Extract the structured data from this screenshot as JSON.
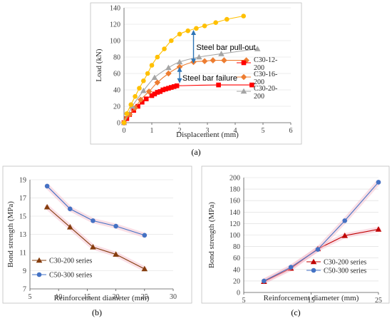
{
  "chart_data": [
    {
      "panel_label": "(a)",
      "type": "scatter",
      "xlabel": "Displacement (mm)",
      "ylabel": "Load (kN)",
      "xlim": [
        0,
        6
      ],
      "ylim": [
        0,
        140
      ],
      "xticks": [
        0,
        1,
        2,
        3,
        4,
        5,
        6
      ],
      "yticks": [
        0,
        20,
        40,
        60,
        80,
        100,
        120,
        140
      ],
      "grid": "horizontal",
      "legend_position": "right",
      "series": [
        {
          "name": "C30-12-200",
          "color": "#ff0000",
          "marker": "square",
          "x": [
            0,
            0.1,
            0.2,
            0.35,
            0.5,
            0.65,
            0.8,
            1.0,
            1.1,
            1.2,
            1.3,
            1.4,
            1.5,
            1.6,
            1.7,
            1.8,
            1.9,
            3.4,
            4.6
          ],
          "y": [
            0,
            5,
            10,
            15,
            20,
            25,
            29,
            33,
            35,
            37,
            38,
            40,
            41,
            42,
            43,
            44,
            45,
            46,
            46
          ]
        },
        {
          "name": "C30-16-200",
          "color": "#ed7d31",
          "marker": "diamond",
          "x": [
            0,
            0.2,
            0.4,
            0.6,
            0.9,
            1.2,
            1.6,
            2.0,
            2.5,
            2.9,
            3.2,
            3.6,
            4.4
          ],
          "y": [
            0,
            10,
            18,
            28,
            38,
            49,
            60,
            68,
            74,
            75,
            76,
            76,
            76
          ]
        },
        {
          "name": "C30-20-200",
          "color": "#a5a5a5",
          "marker": "triangle",
          "x": [
            0,
            0.3,
            0.7,
            1.1,
            1.6,
            2.0,
            2.7,
            3.5,
            4.8
          ],
          "y": [
            0,
            20,
            39,
            55,
            67,
            74,
            80,
            84,
            90
          ]
        },
        {
          "name": "",
          "color": "#ffc000",
          "marker": "circle",
          "x": [
            0,
            0.1,
            0.25,
            0.4,
            0.55,
            0.7,
            0.85,
            1.0,
            1.2,
            1.45,
            1.7,
            2.0,
            2.3,
            2.6,
            2.9,
            3.3,
            3.7,
            4.3
          ],
          "y": [
            0,
            11,
            22,
            32,
            42,
            51,
            60,
            70,
            80,
            90,
            100,
            108,
            112,
            115,
            118,
            122,
            126,
            130
          ]
        }
      ],
      "annotations": [
        {
          "text": "Steel bar pull-out",
          "arrow_x": 2.5,
          "arrow_y": [
            72,
            113
          ],
          "label_x": 2.6,
          "label_y": 92
        },
        {
          "text": "Steel bar failure",
          "arrow_x": 2.0,
          "arrow_y": [
            48,
            68
          ],
          "label_x": 2.1,
          "label_y": 55
        }
      ]
    },
    {
      "panel_label": "(b)",
      "type": "line",
      "xlabel": "Reinforcement diameter (mm)",
      "ylabel": "Bond strength (MPa)",
      "xlim": [
        5,
        30
      ],
      "ylim": [
        7,
        19
      ],
      "xticks": [
        5,
        10,
        15,
        20,
        25,
        30
      ],
      "yticks": [
        7,
        9,
        11,
        13,
        15,
        17,
        19
      ],
      "grid": "horizontal",
      "legend_position": "bottom-left",
      "series": [
        {
          "name": "C30-200 series",
          "color": "#843c0c",
          "marker": "triangle",
          "x": [
            8,
            12,
            16,
            20,
            25
          ],
          "y": [
            16.0,
            13.8,
            11.6,
            10.8,
            9.2
          ]
        },
        {
          "name": "C50-300 series",
          "color": "#4472c4",
          "marker": "circle",
          "x": [
            8,
            12,
            16,
            20,
            25
          ],
          "y": [
            18.3,
            15.8,
            14.5,
            13.9,
            12.9
          ]
        }
      ]
    },
    {
      "panel_label": "(c)",
      "type": "line",
      "xlabel": "Reinforcement diameter (mm)",
      "ylabel": "Bond strength (MPa)",
      "xlim": [
        5,
        25
      ],
      "ylim": [
        0,
        200
      ],
      "xticks": [
        5,
        15,
        25
      ],
      "yticks": [
        0,
        20,
        40,
        60,
        80,
        100,
        120,
        140,
        160,
        180,
        200
      ],
      "grid": "horizontal",
      "legend_position": "bottom-right",
      "series": [
        {
          "name": "C30-200 series",
          "color": "#c00000",
          "marker": "triangle",
          "x": [
            8,
            12,
            16,
            20,
            25
          ],
          "y": [
            19,
            42,
            76,
            99,
            110
          ]
        },
        {
          "name": "C50-300 series",
          "color": "#4472c4",
          "marker": "circle",
          "x": [
            8,
            12,
            16,
            20,
            25
          ],
          "y": [
            20,
            44,
            75,
            125,
            192
          ]
        }
      ]
    }
  ]
}
